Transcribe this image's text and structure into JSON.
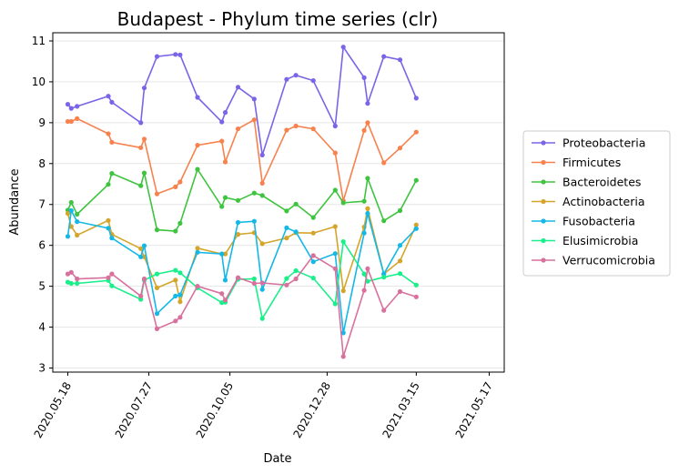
{
  "chart_data": {
    "type": "line",
    "title": "Budapest - Phylum time series (clr)",
    "xlabel": "Date",
    "ylabel": "Abundance",
    "x_tick_labels": [
      "2020.05.18",
      "2020.07.27",
      "2020.10.05",
      "2020.12.28",
      "2021.03.15",
      "2021.05.17"
    ],
    "ylim": [
      2.9,
      11.2
    ],
    "xlim": [
      "2020-05-05",
      "2021-05-30"
    ],
    "y_ticks": [
      3,
      4,
      5,
      6,
      7,
      8,
      9,
      10,
      11
    ],
    "grid": "horizontal",
    "legend_position": "right",
    "x": [
      "2020-05-18",
      "2020-05-21",
      "2020-05-26",
      "2020-06-22",
      "2020-06-25",
      "2020-07-20",
      "2020-07-23",
      "2020-08-03",
      "2020-08-19",
      "2020-08-23",
      "2020-09-07",
      "2020-09-28",
      "2020-10-01",
      "2020-10-12",
      "2020-10-26",
      "2020-11-02",
      "2020-11-23",
      "2020-12-01",
      "2020-12-16",
      "2021-01-04",
      "2021-01-11",
      "2021-01-29",
      "2021-02-01",
      "2021-02-15",
      "2021-03-01",
      "2021-03-15",
      "2021-03-26",
      "2021-03-31",
      "2021-04-05",
      "2021-04-19",
      "2021-04-26",
      "2021-05-11",
      "2021-05-17"
    ],
    "series": [
      {
        "name": "Proteobacteria",
        "color": "#7b64e8",
        "values": [
          9.45,
          9.35,
          9.4,
          9.65,
          9.5,
          9.0,
          9.85,
          10.62,
          10.67,
          10.66,
          9.62,
          9.02,
          9.25,
          9.87,
          9.58,
          8.21,
          10.06,
          10.16,
          10.03,
          8.92,
          10.85,
          10.1,
          9.47,
          10.62,
          10.54,
          9.6,
          null,
          null,
          null,
          null,
          null,
          null,
          null
        ]
      },
      {
        "name": "Firmicutes",
        "color": "#f7824e",
        "values": [
          9.03,
          9.03,
          9.1,
          8.73,
          8.52,
          8.39,
          8.6,
          7.26,
          7.43,
          7.55,
          8.45,
          8.55,
          8.04,
          8.85,
          9.07,
          7.52,
          8.82,
          8.92,
          8.85,
          8.26,
          7.09,
          8.81,
          9.0,
          8.02,
          8.38,
          8.77,
          null,
          null,
          null,
          null,
          null,
          null,
          null
        ]
      },
      {
        "name": "Bacteroidetes",
        "color": "#3ec43e",
        "values": [
          6.86,
          7.05,
          6.76,
          7.49,
          7.76,
          7.46,
          7.77,
          6.38,
          6.35,
          6.54,
          7.86,
          6.95,
          7.17,
          7.1,
          7.28,
          7.22,
          6.84,
          7.01,
          6.68,
          7.35,
          7.04,
          7.08,
          7.64,
          6.6,
          6.85,
          7.59,
          null,
          null,
          null,
          null,
          null,
          null,
          null
        ]
      },
      {
        "name": "Actinobacteria",
        "color": "#d4a52a",
        "values": [
          6.78,
          6.46,
          6.25,
          6.61,
          6.27,
          5.92,
          5.72,
          4.96,
          5.15,
          4.62,
          5.93,
          5.79,
          5.79,
          6.27,
          6.31,
          6.04,
          6.18,
          6.31,
          6.3,
          6.46,
          4.89,
          6.45,
          6.9,
          5.3,
          5.62,
          6.5,
          null,
          null,
          null,
          null,
          null,
          null,
          null
        ]
      },
      {
        "name": "Fusobacteria",
        "color": "#13b8e6",
        "values": [
          6.22,
          6.85,
          6.58,
          6.42,
          6.18,
          5.72,
          5.99,
          4.33,
          4.76,
          4.79,
          5.83,
          5.79,
          5.15,
          6.56,
          6.59,
          4.92,
          6.43,
          6.33,
          5.6,
          5.8,
          3.86,
          6.3,
          6.78,
          5.3,
          6.0,
          6.41,
          null,
          null,
          null,
          null,
          null,
          null,
          null
        ]
      },
      {
        "name": "Elusimicrobia",
        "color": "#19ef8a",
        "values": [
          5.1,
          5.07,
          5.07,
          5.14,
          5.01,
          4.68,
          5.15,
          5.3,
          5.39,
          5.33,
          4.96,
          4.6,
          4.61,
          5.17,
          5.18,
          4.21,
          5.19,
          5.38,
          5.2,
          4.57,
          6.09,
          5.3,
          5.12,
          5.22,
          5.31,
          5.03,
          null,
          null,
          null,
          null,
          null,
          null,
          null
        ]
      },
      {
        "name": "Verrucomicrobia",
        "color": "#d8719d",
        "values": [
          5.3,
          5.34,
          5.18,
          5.21,
          5.3,
          4.76,
          5.18,
          3.96,
          4.15,
          4.24,
          5.0,
          4.82,
          4.66,
          5.21,
          5.07,
          5.08,
          5.03,
          5.18,
          5.75,
          5.43,
          3.28,
          4.9,
          5.43,
          4.41,
          4.87,
          4.74,
          null,
          null,
          null,
          null,
          null,
          null,
          null
        ]
      }
    ]
  }
}
